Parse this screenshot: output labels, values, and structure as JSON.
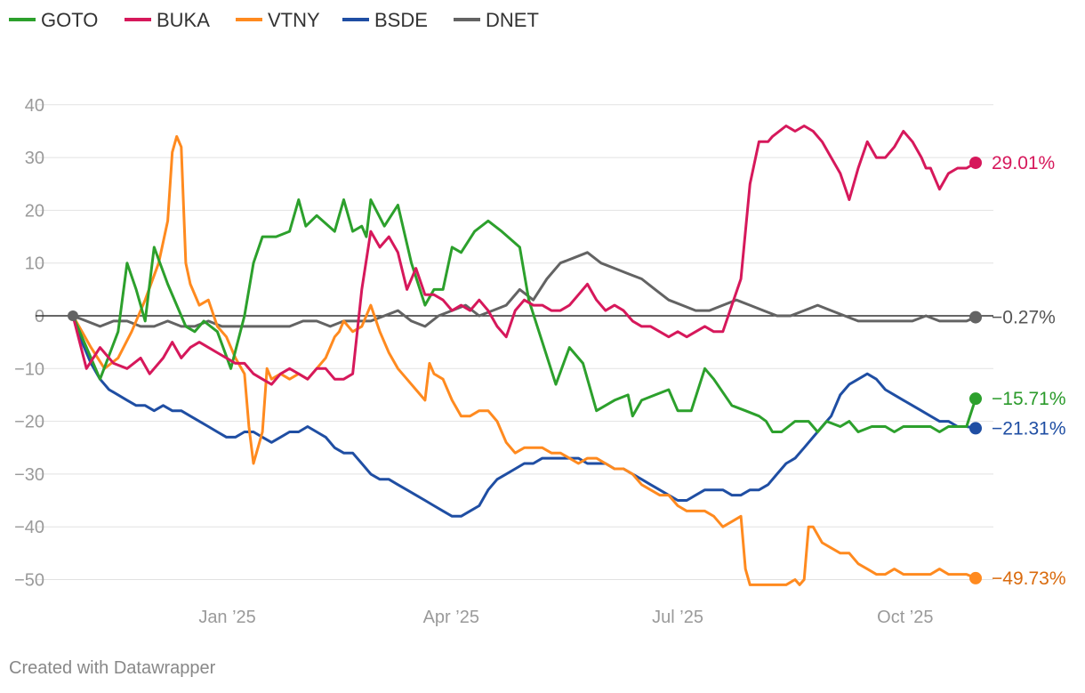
{
  "chart_data": {
    "type": "line",
    "title": "",
    "xlabel": "",
    "ylabel": "",
    "ylim": [
      -55,
      50
    ],
    "yticks": [
      40,
      30,
      20,
      10,
      0,
      -10,
      -20,
      -30,
      -40,
      -50
    ],
    "ytick_labels": [
      "40",
      "30",
      "20",
      "10",
      "0",
      "−10",
      "−20",
      "−30",
      "−40",
      "−50"
    ],
    "xlim": [
      0,
      1000
    ],
    "x_ticks": [
      {
        "x": 171,
        "label": "Jan ’25"
      },
      {
        "x": 419,
        "label": "Apr ’25"
      },
      {
        "x": 670,
        "label": "Jul ’25"
      },
      {
        "x": 922,
        "label": "Oct ’25"
      }
    ],
    "legend": [
      "GOTO",
      "BUKA",
      "VTNY",
      "BSDE",
      "DNET"
    ],
    "series": [
      {
        "name": "GOTO",
        "color": "#2ca02c",
        "label_color": "#2a9a2a",
        "end_label": "−15.71%",
        "x": [
          0,
          20,
          30,
          50,
          60,
          70,
          80,
          90,
          105,
          125,
          135,
          145,
          160,
          175,
          190,
          200,
          210,
          225,
          240,
          250,
          258,
          270,
          290,
          300,
          310,
          320,
          325,
          330,
          345,
          360,
          375,
          390,
          400,
          410,
          420,
          430,
          445,
          460,
          475,
          495,
          505,
          520,
          535,
          550,
          565,
          580,
          600,
          615,
          620,
          630,
          645,
          660,
          670,
          685,
          700,
          710,
          730,
          745,
          760,
          768,
          775,
          785,
          800,
          815,
          825,
          835,
          850,
          860,
          870,
          885,
          900,
          910,
          920,
          930,
          940,
          950,
          960,
          970,
          980,
          990,
          1000
        ],
        "y": [
          0,
          -8,
          -12,
          -3,
          10,
          5,
          -1,
          13,
          6,
          -2,
          -3,
          -1,
          -3,
          -10,
          0,
          10,
          15,
          15,
          16,
          22,
          17,
          19,
          16,
          22,
          16,
          17,
          15,
          22,
          17,
          21,
          10,
          2,
          5,
          5,
          13,
          12,
          16,
          18,
          16,
          13,
          3,
          -5,
          -13,
          -6,
          -9,
          -18,
          -16,
          -15,
          -19,
          -16,
          -15,
          -14,
          -18,
          -18,
          -10,
          -12,
          -17,
          -18,
          -19,
          -20,
          -22,
          -22,
          -20,
          -20,
          -22,
          -20,
          -21,
          -20,
          -22,
          -21,
          -21,
          -22,
          -21,
          -21,
          -21,
          -21,
          -22,
          -21,
          -21,
          -21,
          -15.71
        ]
      },
      {
        "name": "BUKA",
        "color": "#d6185b",
        "label_color": "#d6185b",
        "end_label": "29.01%",
        "x": [
          0,
          15,
          30,
          45,
          60,
          75,
          85,
          100,
          110,
          120,
          130,
          140,
          150,
          160,
          170,
          180,
          190,
          200,
          210,
          220,
          230,
          240,
          250,
          260,
          270,
          280,
          290,
          300,
          310,
          320,
          330,
          340,
          350,
          360,
          370,
          380,
          390,
          400,
          410,
          420,
          430,
          440,
          450,
          460,
          470,
          480,
          490,
          500,
          510,
          520,
          530,
          540,
          550,
          560,
          570,
          580,
          590,
          600,
          610,
          620,
          630,
          640,
          650,
          660,
          670,
          680,
          690,
          700,
          710,
          720,
          730,
          740,
          750,
          760,
          770,
          775,
          790,
          800,
          810,
          820,
          830,
          840,
          850,
          860,
          870,
          880,
          890,
          900,
          910,
          920,
          930,
          940,
          945,
          950,
          960,
          970,
          980,
          990,
          1000
        ],
        "y": [
          0,
          -10,
          -6,
          -9,
          -10,
          -8,
          -11,
          -8,
          -5,
          -8,
          -6,
          -5,
          -6,
          -7,
          -8,
          -9,
          -9,
          -11,
          -12,
          -13,
          -11,
          -10,
          -11,
          -12,
          -10,
          -10,
          -12,
          -12,
          -11,
          5,
          16,
          13,
          15,
          12,
          5,
          9,
          4,
          4,
          3,
          1,
          2,
          1,
          3,
          1,
          -2,
          -4,
          1,
          3,
          2,
          2,
          1,
          1,
          2,
          4,
          6,
          3,
          1,
          2,
          1,
          -1,
          -2,
          -2,
          -3,
          -4,
          -3,
          -4,
          -3,
          -2,
          -3,
          -3,
          2,
          7,
          25,
          33,
          33,
          34,
          36,
          35,
          36,
          35,
          33,
          30,
          27,
          22,
          28,
          33,
          30,
          30,
          32,
          35,
          33,
          30,
          28,
          28,
          24,
          27,
          28,
          28,
          29.01
        ]
      },
      {
        "name": "VTNY",
        "color": "#ff8a1f",
        "label_color": "#d96a0d",
        "end_label": "−49.73%",
        "x": [
          0,
          10,
          20,
          35,
          50,
          65,
          80,
          95,
          105,
          110,
          115,
          120,
          125,
          130,
          140,
          150,
          160,
          170,
          180,
          190,
          195,
          200,
          210,
          215,
          220,
          230,
          240,
          250,
          260,
          270,
          280,
          290,
          295,
          300,
          310,
          320,
          330,
          340,
          350,
          360,
          370,
          380,
          390,
          395,
          400,
          410,
          420,
          430,
          440,
          450,
          460,
          470,
          480,
          490,
          500,
          510,
          520,
          530,
          540,
          550,
          560,
          570,
          580,
          590,
          600,
          610,
          620,
          630,
          640,
          650,
          660,
          670,
          680,
          690,
          700,
          710,
          720,
          730,
          740,
          745,
          750,
          760,
          770,
          780,
          790,
          800,
          805,
          810,
          815,
          820,
          830,
          840,
          850,
          860,
          870,
          880,
          890,
          900,
          910,
          920,
          930,
          940,
          950,
          960,
          970,
          980,
          990,
          1000
        ],
        "y": [
          0,
          -3,
          -6,
          -10,
          -8,
          -3,
          3,
          10,
          18,
          31,
          34,
          32,
          10,
          6,
          2,
          3,
          -2,
          -4,
          -8,
          -11,
          -21,
          -28,
          -22,
          -10,
          -12,
          -11,
          -12,
          -11,
          -12,
          -10,
          -8,
          -4,
          -3,
          -1,
          -3,
          -2,
          2,
          -3,
          -7,
          -10,
          -12,
          -14,
          -16,
          -9,
          -11,
          -12,
          -16,
          -19,
          -19,
          -18,
          -18,
          -20,
          -24,
          -26,
          -25,
          -25,
          -25,
          -26,
          -26,
          -27,
          -28,
          -27,
          -27,
          -28,
          -29,
          -29,
          -30,
          -32,
          -33,
          -34,
          -34,
          -36,
          -37,
          -37,
          -37,
          -38,
          -40,
          -39,
          -38,
          -48,
          -51,
          -51,
          -51,
          -51,
          -51,
          -50,
          -51,
          -50,
          -40,
          -40,
          -43,
          -44,
          -45,
          -45,
          -47,
          -48,
          -49,
          -49,
          -48,
          -49,
          -49,
          -49,
          -49,
          -48,
          -49,
          -49,
          -49,
          -49.73
        ]
      },
      {
        "name": "BSDE",
        "color": "#1f4ea3",
        "label_color": "#1f4ea3",
        "end_label": "−21.31%",
        "x": [
          0,
          5,
          10,
          20,
          30,
          40,
          50,
          60,
          70,
          80,
          90,
          100,
          110,
          120,
          130,
          140,
          150,
          160,
          170,
          180,
          190,
          200,
          210,
          220,
          230,
          240,
          250,
          260,
          270,
          280,
          290,
          300,
          310,
          320,
          330,
          340,
          350,
          360,
          370,
          380,
          390,
          400,
          410,
          420,
          430,
          440,
          450,
          460,
          470,
          480,
          490,
          500,
          510,
          520,
          530,
          540,
          550,
          560,
          570,
          580,
          590,
          600,
          610,
          620,
          630,
          640,
          650,
          660,
          670,
          680,
          690,
          700,
          710,
          720,
          730,
          740,
          750,
          760,
          770,
          780,
          790,
          800,
          810,
          820,
          830,
          840,
          850,
          860,
          870,
          880,
          890,
          900,
          910,
          920,
          930,
          940,
          950,
          960,
          970,
          980,
          990,
          1000
        ],
        "y": [
          0,
          -3,
          -5,
          -9,
          -12,
          -14,
          -15,
          -16,
          -17,
          -17,
          -18,
          -17,
          -18,
          -18,
          -19,
          -20,
          -21,
          -22,
          -23,
          -23,
          -22,
          -22,
          -23,
          -24,
          -23,
          -22,
          -22,
          -21,
          -22,
          -23,
          -25,
          -26,
          -26,
          -28,
          -30,
          -31,
          -31,
          -32,
          -33,
          -34,
          -35,
          -36,
          -37,
          -38,
          -38,
          -37,
          -36,
          -33,
          -31,
          -30,
          -29,
          -28,
          -28,
          -27,
          -27,
          -27,
          -27,
          -27,
          -28,
          -28,
          -28,
          -29,
          -29,
          -30,
          -31,
          -32,
          -33,
          -34,
          -35,
          -35,
          -34,
          -33,
          -33,
          -33,
          -34,
          -34,
          -33,
          -33,
          -32,
          -30,
          -28,
          -27,
          -25,
          -23,
          -21,
          -19,
          -15,
          -13,
          -12,
          -11,
          -12,
          -14,
          -15,
          -16,
          -17,
          -18,
          -19,
          -20,
          -20,
          -21,
          -21,
          -21.31
        ]
      },
      {
        "name": "DNET",
        "color": "#636363",
        "label_color": "#555555",
        "end_label": "−0.27%",
        "x": [
          0,
          15,
          30,
          45,
          60,
          75,
          90,
          105,
          120,
          135,
          150,
          165,
          180,
          195,
          210,
          225,
          240,
          255,
          270,
          285,
          300,
          315,
          330,
          345,
          360,
          375,
          390,
          405,
          420,
          435,
          450,
          465,
          480,
          495,
          510,
          525,
          540,
          555,
          570,
          585,
          600,
          615,
          630,
          645,
          660,
          675,
          690,
          705,
          720,
          735,
          750,
          765,
          780,
          795,
          810,
          825,
          840,
          855,
          870,
          885,
          900,
          915,
          930,
          945,
          960,
          975,
          990,
          1000
        ],
        "y": [
          0,
          -1,
          -2,
          -1,
          -1,
          -2,
          -2,
          -1,
          -2,
          -2,
          -1,
          -2,
          -2,
          -2,
          -2,
          -2,
          -2,
          -1,
          -1,
          -2,
          -1,
          -1,
          -1,
          0,
          1,
          -1,
          -2,
          0,
          1,
          2,
          0,
          1,
          2,
          5,
          3,
          7,
          10,
          11,
          12,
          10,
          9,
          8,
          7,
          5,
          3,
          2,
          1,
          1,
          2,
          3,
          2,
          1,
          0,
          0,
          1,
          2,
          1,
          0,
          -1,
          -1,
          -1,
          -1,
          -1,
          0,
          -1,
          -1,
          -1,
          -0.27
        ]
      }
    ]
  },
  "footer": {
    "credit": "Created with Datawrapper"
  }
}
